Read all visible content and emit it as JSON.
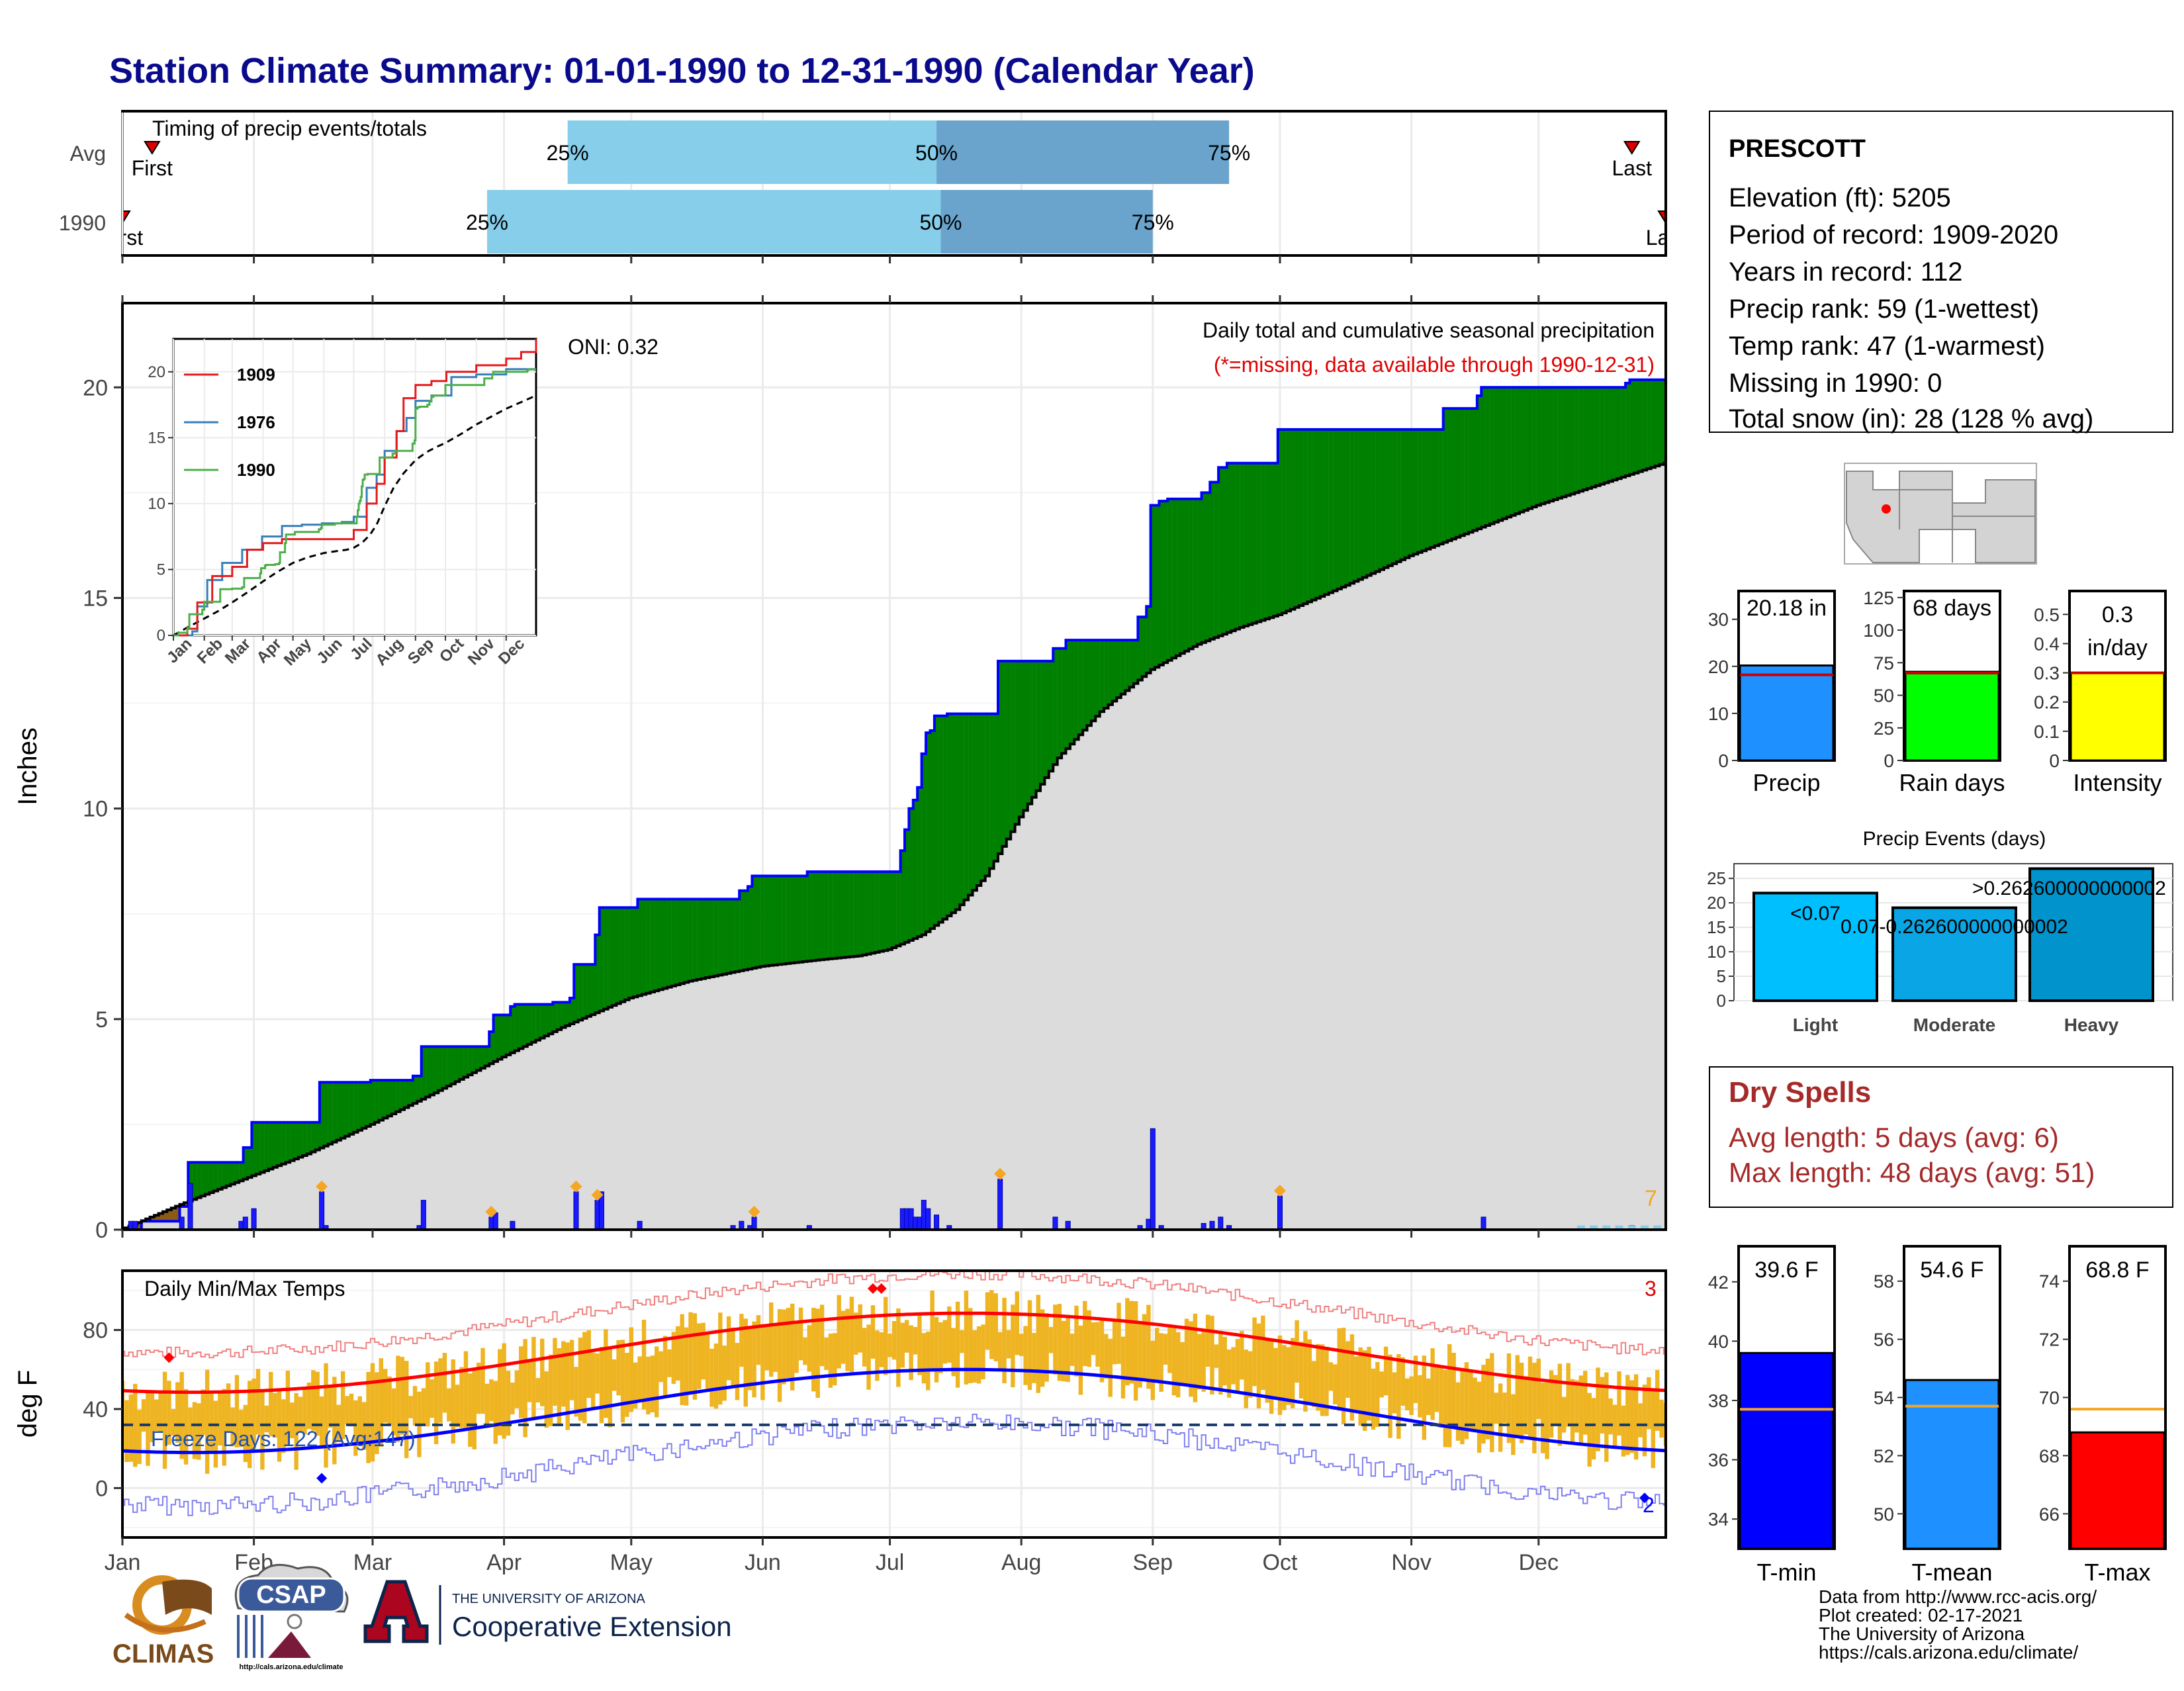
{
  "title": "Station Climate Summary: 01-01-1990 to 12-31-1990 (Calendar Year)",
  "colors": {
    "title": "#0a0a8c",
    "light_blue": "#87ceeb",
    "mid_blue": "#6aa3cc",
    "green": "#008000",
    "brown": "#8b5a14",
    "gray_fill": "#dcdcdc",
    "precip_bar": "#1a1aff",
    "orange": "#f5a623",
    "red": "#e00000",
    "dry_spell": "#a52a2a",
    "tmin": "#0000ff",
    "tmean": "#1e90ff",
    "tmax": "#ff0000"
  },
  "timing": {
    "title": "Timing of precip events/totals",
    "rows": [
      {
        "label": "Avg",
        "first_label": "First",
        "last_label": "Last",
        "q25": "25%",
        "q50": "50%",
        "q75": "75%",
        "first_doy": 8,
        "last_doy": 357,
        "p25_doy": 106,
        "p50_doy": 193,
        "p75_doy": 262
      },
      {
        "label": "1990",
        "first_label": "First",
        "last_label": "Last",
        "q25": "25%",
        "q50": "50%",
        "q75": "75%",
        "first_doy": 1,
        "last_doy": 365,
        "p25_doy": 87,
        "p50_doy": 194,
        "p75_doy": 244
      }
    ]
  },
  "months": [
    "Jan",
    "Feb",
    "Mar",
    "Apr",
    "May",
    "Jun",
    "Jul",
    "Aug",
    "Sep",
    "Oct",
    "Nov",
    "Dec"
  ],
  "month_start_doy": [
    1,
    32,
    60,
    91,
    121,
    152,
    182,
    213,
    244,
    274,
    305,
    335
  ],
  "precip_panel": {
    "ylabel": "Inches",
    "yticks": [
      0,
      5,
      10,
      15,
      20
    ],
    "ylim": [
      0,
      22
    ],
    "subtitle": "Daily total and cumulative seasonal precipitation",
    "missing_note": "(*=missing, data available through 1990-12-31)",
    "oni": "ONI: 0.32",
    "count_label": "7",
    "cumulative_1990": [
      [
        1,
        0
      ],
      [
        6,
        0.2
      ],
      [
        15,
        0.55
      ],
      [
        17,
        1.6
      ],
      [
        29,
        1.6
      ],
      [
        30,
        1.95
      ],
      [
        32,
        2.55
      ],
      [
        45,
        2.55
      ],
      [
        48,
        3.5
      ],
      [
        57,
        3.5
      ],
      [
        60,
        3.55
      ],
      [
        70,
        3.65
      ],
      [
        72,
        4.35
      ],
      [
        88,
        4.7
      ],
      [
        89,
        5.1
      ],
      [
        93,
        5.3
      ],
      [
        94,
        5.35
      ],
      [
        103,
        5.4
      ],
      [
        107,
        5.5
      ],
      [
        108,
        6.3
      ],
      [
        113,
        7.0
      ],
      [
        114,
        7.65
      ],
      [
        122,
        7.65
      ],
      [
        123,
        7.85
      ],
      [
        145,
        7.85
      ],
      [
        147,
        8.05
      ],
      [
        149,
        8.15
      ],
      [
        150,
        8.4
      ],
      [
        162,
        8.4
      ],
      [
        163,
        8.5
      ],
      [
        184,
        8.5
      ],
      [
        185,
        9.0
      ],
      [
        186,
        9.5
      ],
      [
        187,
        10.0
      ],
      [
        188,
        10.2
      ],
      [
        189,
        10.5
      ],
      [
        190,
        11.3
      ],
      [
        191,
        11.8
      ],
      [
        192,
        11.85
      ],
      [
        193,
        12.2
      ],
      [
        196,
        12.25
      ],
      [
        207,
        12.25
      ],
      [
        208,
        13.5
      ],
      [
        220,
        13.5
      ],
      [
        221,
        13.8
      ],
      [
        224,
        14.0
      ],
      [
        240,
        14.0
      ],
      [
        241,
        14.55
      ],
      [
        243,
        14.8
      ],
      [
        244,
        17.2
      ],
      [
        246,
        17.3
      ],
      [
        248,
        17.35
      ],
      [
        255,
        17.35
      ],
      [
        256,
        17.5
      ],
      [
        258,
        17.75
      ],
      [
        260,
        18.1
      ],
      [
        262,
        18.2
      ],
      [
        274,
        19.0
      ],
      [
        305,
        19.0
      ],
      [
        313,
        19.5
      ],
      [
        321,
        19.8
      ],
      [
        322,
        20.0
      ],
      [
        350,
        20.0
      ],
      [
        356,
        20.1
      ],
      [
        357,
        20.18
      ],
      [
        365,
        20.18
      ]
    ],
    "normal_cumulative": [
      [
        1,
        0
      ],
      [
        15,
        0.6
      ],
      [
        30,
        1.2
      ],
      [
        45,
        1.8
      ],
      [
        60,
        2.5
      ],
      [
        75,
        3.25
      ],
      [
        91,
        4.1
      ],
      [
        105,
        4.8
      ],
      [
        121,
        5.5
      ],
      [
        135,
        5.9
      ],
      [
        152,
        6.25
      ],
      [
        165,
        6.4
      ],
      [
        175,
        6.5
      ],
      [
        182,
        6.65
      ],
      [
        190,
        7.0
      ],
      [
        198,
        7.6
      ],
      [
        205,
        8.4
      ],
      [
        213,
        9.8
      ],
      [
        222,
        11.2
      ],
      [
        232,
        12.3
      ],
      [
        244,
        13.3
      ],
      [
        255,
        13.9
      ],
      [
        265,
        14.3
      ],
      [
        274,
        14.6
      ],
      [
        290,
        15.3
      ],
      [
        305,
        16.0
      ],
      [
        320,
        16.6
      ],
      [
        335,
        17.2
      ],
      [
        350,
        17.7
      ],
      [
        365,
        18.2
      ]
    ],
    "daily_bars": [
      [
        3,
        0.2
      ],
      [
        4,
        0.2
      ],
      [
        15,
        0.3
      ],
      [
        17,
        1.1
      ],
      [
        29,
        0.2
      ],
      [
        30,
        0.3
      ],
      [
        32,
        0.5
      ],
      [
        48,
        0.9
      ],
      [
        49,
        0.1
      ],
      [
        71,
        0.1
      ],
      [
        72,
        0.7
      ],
      [
        88,
        0.3
      ],
      [
        89,
        0.4
      ],
      [
        93,
        0.2
      ],
      [
        108,
        0.9
      ],
      [
        113,
        0.7
      ],
      [
        114,
        0.9
      ],
      [
        123,
        0.2
      ],
      [
        145,
        0.1
      ],
      [
        147,
        0.2
      ],
      [
        149,
        0.1
      ],
      [
        150,
        0.3
      ],
      [
        163,
        0.1
      ],
      [
        185,
        0.5
      ],
      [
        186,
        0.5
      ],
      [
        187,
        0.5
      ],
      [
        188,
        0.3
      ],
      [
        189,
        0.3
      ],
      [
        190,
        0.7
      ],
      [
        191,
        0.5
      ],
      [
        193,
        0.35
      ],
      [
        196,
        0.1
      ],
      [
        208,
        1.2
      ],
      [
        221,
        0.3
      ],
      [
        224,
        0.2
      ],
      [
        241,
        0.1
      ],
      [
        243,
        0.25
      ],
      [
        244,
        2.4
      ],
      [
        246,
        0.1
      ],
      [
        256,
        0.15
      ],
      [
        258,
        0.2
      ],
      [
        260,
        0.3
      ],
      [
        262,
        0.1
      ],
      [
        274,
        0.8
      ],
      [
        322,
        0.3
      ],
      [
        357,
        0.1
      ]
    ],
    "event_markers": [
      48,
      88,
      108,
      113,
      150,
      208,
      274
    ]
  },
  "inset": {
    "yticks": [
      0,
      5,
      10,
      15,
      20
    ],
    "legend": [
      {
        "name": "1909",
        "color": "#e41a1c"
      },
      {
        "name": "1976",
        "color": "#377eb8"
      },
      {
        "name": "1990",
        "color": "#4daf4a"
      }
    ],
    "series_1909": [
      [
        1,
        0
      ],
      [
        15,
        0.5
      ],
      [
        25,
        2.5
      ],
      [
        40,
        4.5
      ],
      [
        60,
        5.2
      ],
      [
        75,
        6.5
      ],
      [
        91,
        7.0
      ],
      [
        110,
        7.3
      ],
      [
        140,
        7.3
      ],
      [
        175,
        7.3
      ],
      [
        182,
        8.0
      ],
      [
        195,
        10.0
      ],
      [
        205,
        11.5
      ],
      [
        213,
        13.5
      ],
      [
        225,
        15.5
      ],
      [
        232,
        18.0
      ],
      [
        244,
        19.0
      ],
      [
        260,
        19.3
      ],
      [
        275,
        20.0
      ],
      [
        305,
        20.5
      ],
      [
        335,
        21.0
      ],
      [
        350,
        21.5
      ],
      [
        365,
        22.5
      ]
    ],
    "series_1976": [
      [
        1,
        0
      ],
      [
        20,
        0.3
      ],
      [
        25,
        2.2
      ],
      [
        35,
        4.2
      ],
      [
        50,
        5.5
      ],
      [
        70,
        6.5
      ],
      [
        90,
        7.5
      ],
      [
        110,
        8.3
      ],
      [
        130,
        8.4
      ],
      [
        150,
        8.5
      ],
      [
        170,
        8.6
      ],
      [
        182,
        9.0
      ],
      [
        195,
        11.2
      ],
      [
        205,
        12.2
      ],
      [
        213,
        14.0
      ],
      [
        225,
        15.5
      ],
      [
        235,
        16.5
      ],
      [
        244,
        17.8
      ],
      [
        260,
        18.2
      ],
      [
        280,
        19.6
      ],
      [
        305,
        19.8
      ],
      [
        335,
        20.2
      ],
      [
        365,
        20.2
      ]
    ],
    "series_1990": "=precip_panel.cumulative_1990",
    "series_avg": "=precip_panel.normal_cumulative"
  },
  "station": {
    "name": "PRESCOTT",
    "lines": [
      "Elevation (ft): 5205",
      "Period of record: 1909-2020",
      "Years in record: 112",
      "Precip rank: 59 (1-wettest)",
      "Temp rank: 47 (1-warmest)",
      "Missing in 1990: 0",
      "Total snow (in): 28 (128 % avg)"
    ]
  },
  "small_bars": [
    {
      "label": "Precip",
      "value_label": "20.18 in",
      "value": 20.18,
      "avg": 18.2,
      "ymax": 36,
      "yticks": [
        0,
        10,
        20,
        30
      ],
      "color": "#1e90ff"
    },
    {
      "label": "Rain days",
      "value_label": "68 days",
      "value": 68,
      "avg": 67,
      "ymax": 130,
      "yticks": [
        0,
        25,
        50,
        75,
        100,
        125
      ],
      "color": "#00ff00"
    },
    {
      "label": "Intensity",
      "value_label": "0.3 in/day",
      "value": 0.3,
      "avg": 0.3,
      "ymax": 0.58,
      "yticks": [
        0.0,
        0.1,
        0.2,
        0.3,
        0.4,
        0.5
      ],
      "color": "#ffff00"
    }
  ],
  "events": {
    "title": "Precip Events (days)",
    "yticks": [
      0,
      5,
      10,
      15,
      20,
      25
    ],
    "categories": [
      "Light",
      "Moderate",
      "Heavy"
    ],
    "values": [
      22,
      19,
      27
    ],
    "labels": [
      "<0.07",
      "0.07-0.262600000000002",
      ">0.262600000000002"
    ],
    "colors": [
      "#00bfff",
      "#0aa5e5",
      "#0093cc"
    ]
  },
  "dry_spells": {
    "title": "Dry Spells",
    "avg": "Avg length: 5 days (avg: 6)",
    "max": "Max length: 48 days (avg: 51)"
  },
  "temp_panel": {
    "title": "Daily Min/Max Temps",
    "ylabel": "deg F",
    "yticks": [
      0,
      40,
      80
    ],
    "ylim": [
      -25,
      110
    ],
    "freeze": "Freeze Days: 122 (Avg:147)",
    "hot_count": "3",
    "cold_count": "2"
  },
  "temp_bars": [
    {
      "label": "T-min",
      "value_label": "39.6 F",
      "value": 39.6,
      "avg": 37.7,
      "ylim": [
        33,
        43.2
      ],
      "yticks": [
        34,
        36,
        38,
        40,
        42
      ],
      "color": "#0000ff"
    },
    {
      "label": "T-mean",
      "value_label": "54.6 F",
      "value": 54.6,
      "avg": 53.7,
      "ylim": [
        48.8,
        59.2
      ],
      "yticks": [
        50,
        52,
        54,
        56,
        58
      ],
      "color": "#1e90ff"
    },
    {
      "label": "T-max",
      "value_label": "68.8 F",
      "value": 68.8,
      "avg": 69.6,
      "ylim": [
        64.8,
        75.2
      ],
      "yticks": [
        66,
        68,
        70,
        72,
        74
      ],
      "color": "#ff0000"
    }
  ],
  "footer": {
    "lines": [
      "Data from http://www.rcc-acis.org/",
      "Plot created: 02-17-2021",
      "The University of Arizona",
      "https://cals.arizona.edu/climate/"
    ],
    "climas": "CLIMAS",
    "csap": "CSAP",
    "csap_url": "http://cals.arizona.edu/climate",
    "ua_top": "THE UNIVERSITY OF ARIZONA",
    "ua_bottom": "Cooperative Extension"
  }
}
